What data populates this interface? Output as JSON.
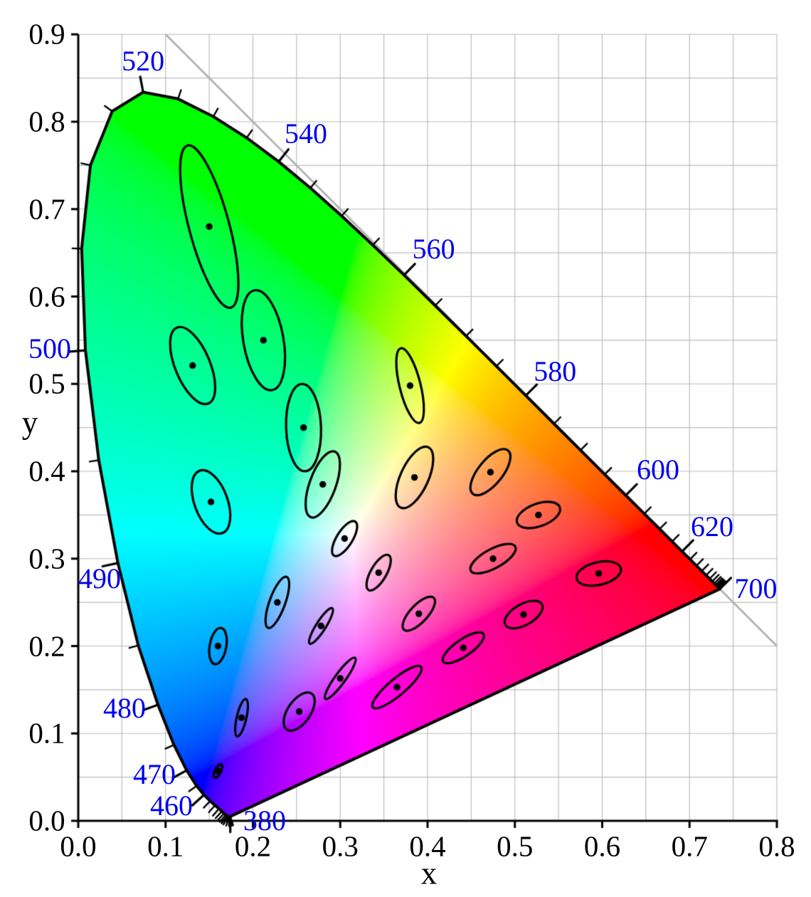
{
  "chart_data": {
    "type": "scatter",
    "subtype": "cie-1931-xy-chromaticity-diagram-with-macadam-ellipses",
    "title": "",
    "xlabel": "x",
    "ylabel": "y",
    "xlim": [
      0.0,
      0.8
    ],
    "ylim": [
      0.0,
      0.9
    ],
    "x_tick_labels": [
      "0.0",
      "0.1",
      "0.2",
      "0.3",
      "0.4",
      "0.5",
      "0.6",
      "0.7",
      "0.8"
    ],
    "y_tick_labels": [
      "0.0",
      "0.1",
      "0.2",
      "0.3",
      "0.4",
      "0.5",
      "0.6",
      "0.7",
      "0.8",
      "0.9"
    ],
    "grid": {
      "on": true,
      "step": 0.05,
      "color": "#bdbdbd"
    },
    "axis_color": "#000000",
    "wavelength_label_color": "#0000ee",
    "diagonal_line": {
      "from": [
        0.1,
        0.9
      ],
      "to": [
        0.8,
        0.2
      ],
      "color": "#b3b3b3"
    },
    "spectral_locus": [
      [
        380,
        0.1741,
        0.005
      ],
      [
        385,
        0.174,
        0.005
      ],
      [
        390,
        0.1738,
        0.0049
      ],
      [
        395,
        0.1736,
        0.0049
      ],
      [
        400,
        0.1733,
        0.0048
      ],
      [
        405,
        0.173,
        0.0048
      ],
      [
        410,
        0.1726,
        0.0048
      ],
      [
        415,
        0.1721,
        0.0048
      ],
      [
        420,
        0.1714,
        0.0051
      ],
      [
        425,
        0.1703,
        0.0058
      ],
      [
        430,
        0.1689,
        0.0069
      ],
      [
        435,
        0.1669,
        0.0086
      ],
      [
        440,
        0.1644,
        0.0109
      ],
      [
        445,
        0.1611,
        0.0138
      ],
      [
        450,
        0.1566,
        0.0177
      ],
      [
        455,
        0.151,
        0.0227
      ],
      [
        460,
        0.144,
        0.0297
      ],
      [
        465,
        0.1355,
        0.0399
      ],
      [
        470,
        0.1241,
        0.0578
      ],
      [
        475,
        0.1096,
        0.0868
      ],
      [
        480,
        0.0913,
        0.1327
      ],
      [
        485,
        0.0687,
        0.2007
      ],
      [
        490,
        0.0454,
        0.295
      ],
      [
        495,
        0.0235,
        0.4127
      ],
      [
        500,
        0.0082,
        0.5384
      ],
      [
        505,
        0.0039,
        0.6548
      ],
      [
        510,
        0.0139,
        0.7502
      ],
      [
        515,
        0.0389,
        0.812
      ],
      [
        520,
        0.0743,
        0.8338
      ],
      [
        525,
        0.1142,
        0.8262
      ],
      [
        530,
        0.1547,
        0.8059
      ],
      [
        535,
        0.1929,
        0.7816
      ],
      [
        540,
        0.2296,
        0.7543
      ],
      [
        545,
        0.2658,
        0.7243
      ],
      [
        550,
        0.3016,
        0.6923
      ],
      [
        555,
        0.3373,
        0.6589
      ],
      [
        560,
        0.3731,
        0.6245
      ],
      [
        565,
        0.4087,
        0.5896
      ],
      [
        570,
        0.4441,
        0.5547
      ],
      [
        575,
        0.4788,
        0.5202
      ],
      [
        580,
        0.5125,
        0.4866
      ],
      [
        585,
        0.5448,
        0.4544
      ],
      [
        590,
        0.5752,
        0.4242
      ],
      [
        595,
        0.6029,
        0.3965
      ],
      [
        600,
        0.627,
        0.3725
      ],
      [
        605,
        0.6482,
        0.3514
      ],
      [
        610,
        0.6658,
        0.334
      ],
      [
        615,
        0.6801,
        0.3197
      ],
      [
        620,
        0.6915,
        0.3083
      ],
      [
        625,
        0.7006,
        0.2993
      ],
      [
        630,
        0.7079,
        0.292
      ],
      [
        635,
        0.714,
        0.2859
      ],
      [
        640,
        0.719,
        0.2809
      ],
      [
        645,
        0.723,
        0.277
      ],
      [
        650,
        0.726,
        0.274
      ],
      [
        655,
        0.7283,
        0.2717
      ],
      [
        660,
        0.73,
        0.27
      ],
      [
        665,
        0.7311,
        0.2689
      ],
      [
        670,
        0.732,
        0.268
      ],
      [
        675,
        0.7327,
        0.2673
      ],
      [
        680,
        0.7334,
        0.2666
      ],
      [
        685,
        0.734,
        0.266
      ],
      [
        690,
        0.7344,
        0.2656
      ],
      [
        695,
        0.7346,
        0.2654
      ],
      [
        700,
        0.7347,
        0.2653
      ]
    ],
    "locus_tick_step_nm": 5,
    "labeled_wavelengths": [
      380,
      460,
      470,
      480,
      490,
      500,
      520,
      540,
      560,
      580,
      600,
      620,
      700
    ],
    "wavelength_labels": [
      {
        "nm": "380",
        "x": 0.2134,
        "y": 0.0
      },
      {
        "nm": "460",
        "x": 0.1067,
        "y": 0.017
      },
      {
        "nm": "470",
        "x": 0.0872,
        "y": 0.0529
      },
      {
        "nm": "480",
        "x": 0.053,
        "y": 0.1287
      },
      {
        "nm": "490",
        "x": 0.0244,
        "y": 0.2769
      },
      {
        "nm": "500",
        "x": -0.0326,
        "y": 0.54
      },
      {
        "nm": "520",
        "x": 0.0742,
        "y": 0.869
      },
      {
        "nm": "540",
        "x": 0.2607,
        "y": 0.786
      },
      {
        "nm": "560",
        "x": 0.407,
        "y": 0.654
      },
      {
        "nm": "580",
        "x": 0.546,
        "y": 0.514
      },
      {
        "nm": "600",
        "x": 0.664,
        "y": 0.4016
      },
      {
        "nm": "620",
        "x": 0.7259,
        "y": 0.3363
      },
      {
        "nm": "700",
        "x": 0.776,
        "y": 0.2655
      }
    ],
    "macadam_ellipses": {
      "magnification": 10,
      "ellipses": [
        [
          0.16,
          0.057,
          0.85,
          0.35,
          62.5
        ],
        [
          0.187,
          0.118,
          2.2,
          0.55,
          77.0
        ],
        [
          0.253,
          0.125,
          2.5,
          1.3,
          55.5
        ],
        [
          0.15,
          0.68,
          9.6,
          2.3,
          105.0
        ],
        [
          0.131,
          0.521,
          4.7,
          2.0,
          112.5
        ],
        [
          0.212,
          0.55,
          5.8,
          2.3,
          100.0
        ],
        [
          0.258,
          0.45,
          5.0,
          2.0,
          92.0
        ],
        [
          0.152,
          0.365,
          3.8,
          1.9,
          110.0
        ],
        [
          0.28,
          0.385,
          4.0,
          1.5,
          70.0
        ],
        [
          0.38,
          0.498,
          4.4,
          1.2,
          104.0
        ],
        [
          0.16,
          0.2,
          2.1,
          0.95,
          80.0
        ],
        [
          0.228,
          0.25,
          3.1,
          0.9,
          70.0
        ],
        [
          0.305,
          0.323,
          2.3,
          0.9,
          58.0
        ],
        [
          0.385,
          0.393,
          3.8,
          1.6,
          65.5
        ],
        [
          0.472,
          0.399,
          3.2,
          1.4,
          51.0
        ],
        [
          0.527,
          0.35,
          2.6,
          1.3,
          20.0
        ],
        [
          0.475,
          0.3,
          2.9,
          1.1,
          28.5
        ],
        [
          0.51,
          0.236,
          2.4,
          1.2,
          29.5
        ],
        [
          0.596,
          0.283,
          2.6,
          1.3,
          13.0
        ],
        [
          0.344,
          0.284,
          2.3,
          0.9,
          60.0
        ],
        [
          0.39,
          0.237,
          2.5,
          1.0,
          47.0
        ],
        [
          0.441,
          0.198,
          2.8,
          0.95,
          34.5
        ],
        [
          0.278,
          0.223,
          2.4,
          0.55,
          57.5
        ],
        [
          0.3,
          0.163,
          2.9,
          0.6,
          54.0
        ],
        [
          0.365,
          0.153,
          3.6,
          0.95,
          40.0
        ]
      ]
    }
  }
}
